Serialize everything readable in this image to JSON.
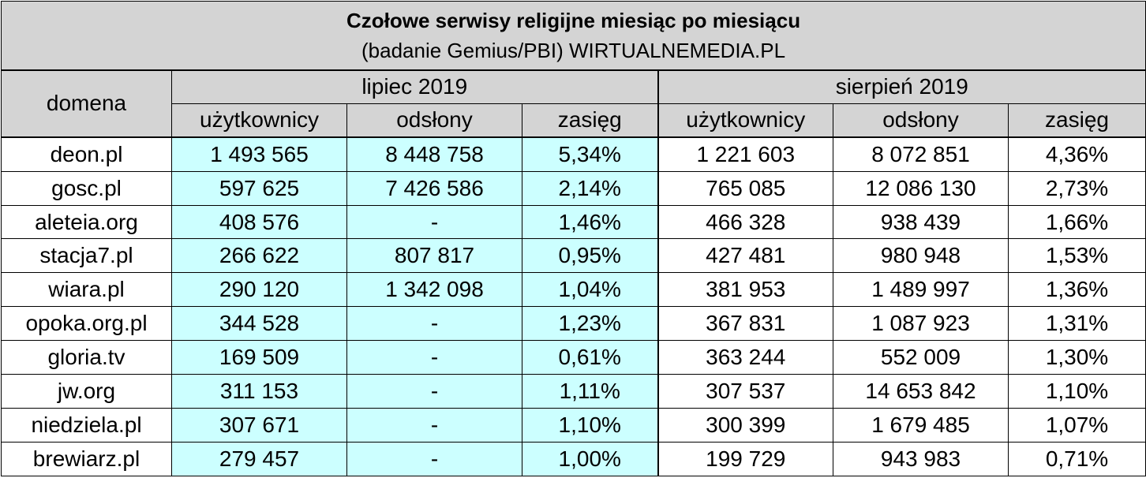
{
  "chart_data": {
    "type": "table",
    "title": "Czołowe serwisy religijne miesiąc po miesiącu",
    "subtitle": "(badanie Gemius/PBI) WIRTUALNEMEDIA.PL",
    "domain_header": "domena",
    "months": [
      "lipiec 2019",
      "sierpień 2019"
    ],
    "columns": [
      "użytkownicy",
      "odsłony",
      "zasięg"
    ],
    "rows": [
      {
        "domain": "deon.pl",
        "jul": [
          "1 493 565",
          "8 448 758",
          "5,34%"
        ],
        "aug": [
          "1 221 603",
          "8 072 851",
          "4,36%"
        ]
      },
      {
        "domain": "gosc.pl",
        "jul": [
          "597 625",
          "7 426 586",
          "2,14%"
        ],
        "aug": [
          "765 085",
          "12 086 130",
          "2,73%"
        ]
      },
      {
        "domain": "aleteia.org",
        "jul": [
          "408 576",
          "-",
          "1,46%"
        ],
        "aug": [
          "466 328",
          "938 439",
          "1,66%"
        ]
      },
      {
        "domain": "stacja7.pl",
        "jul": [
          "266 622",
          "807 817",
          "0,95%"
        ],
        "aug": [
          "427 481",
          "980 948",
          "1,53%"
        ]
      },
      {
        "domain": "wiara.pl",
        "jul": [
          "290 120",
          "1 342 098",
          "1,04%"
        ],
        "aug": [
          "381 953",
          "1 489 997",
          "1,36%"
        ]
      },
      {
        "domain": "opoka.org.pl",
        "jul": [
          "344 528",
          "-",
          "1,23%"
        ],
        "aug": [
          "367 831",
          "1 087 923",
          "1,31%"
        ]
      },
      {
        "domain": "gloria.tv",
        "jul": [
          "169 509",
          "-",
          "0,61%"
        ],
        "aug": [
          "363 244",
          "552 009",
          "1,30%"
        ]
      },
      {
        "domain": "jw.org",
        "jul": [
          "311 153",
          "-",
          "1,11%"
        ],
        "aug": [
          "307 537",
          "14 653 842",
          "1,10%"
        ]
      },
      {
        "domain": "niedziela.pl",
        "jul": [
          "307 671",
          "-",
          "1,10%"
        ],
        "aug": [
          "300 399",
          "1 679 485",
          "1,07%"
        ]
      },
      {
        "domain": "brewiarz.pl",
        "jul": [
          "279 457",
          "-",
          "1,00%"
        ],
        "aug": [
          "199 729",
          "943 983",
          "0,71%"
        ]
      }
    ]
  }
}
